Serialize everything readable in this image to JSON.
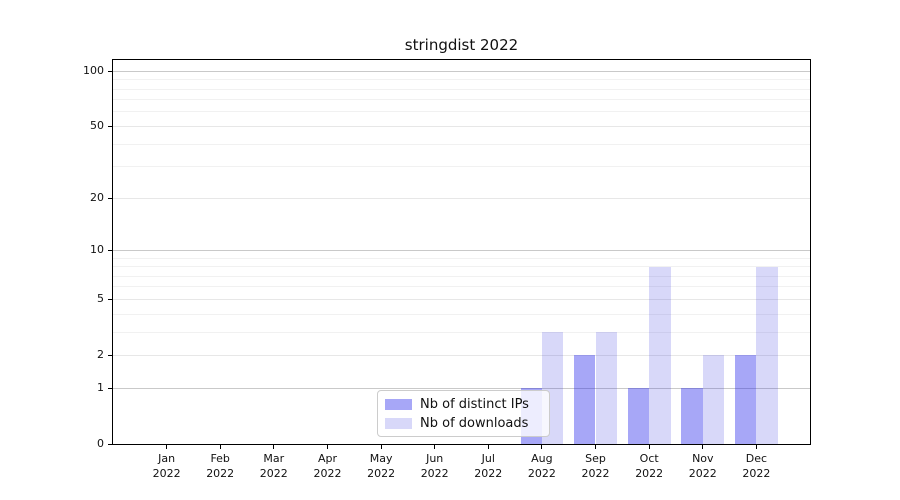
{
  "chart_data": {
    "type": "bar",
    "title": "stringdist 2022",
    "categories": [
      "Jan 2022",
      "Feb 2022",
      "Mar 2022",
      "Apr 2022",
      "May 2022",
      "Jun 2022",
      "Jul 2022",
      "Aug 2022",
      "Sep 2022",
      "Oct 2022",
      "Nov 2022",
      "Dec 2022"
    ],
    "series": [
      {
        "name": "Nb of distinct IPs",
        "fill_hex": "#a7a7f7",
        "fill_rgba": "rgba(35,35,235,0.40)",
        "values": [
          0,
          0,
          0,
          0,
          0,
          0,
          0,
          1,
          2,
          1,
          1,
          2
        ]
      },
      {
        "name": "Nb of downloads",
        "fill_hex": "#d8d8f9",
        "fill_rgba": "rgba(60,60,225,0.20)",
        "values": [
          0,
          0,
          0,
          0,
          0,
          0,
          0,
          3,
          3,
          8,
          2,
          8
        ]
      }
    ],
    "xlabel": "",
    "ylabel": "",
    "yscale": "log1p",
    "ylim": [
      0,
      115
    ],
    "yticks": [
      0,
      1,
      2,
      5,
      10,
      20,
      50,
      100
    ],
    "bar_width_fraction": 0.4,
    "grid": {
      "on": true,
      "decade_values": [
        1,
        10,
        100
      ],
      "decade_color": "#c9c9c9",
      "tick_values": [
        2,
        5,
        20,
        50
      ],
      "tick_color": "#e7e7e7",
      "minor_values": [
        3,
        4,
        6,
        7,
        8,
        9,
        30,
        40,
        60,
        70,
        80,
        90
      ],
      "minor_color": "#f1f1f1"
    },
    "legend_position": "lower center"
  }
}
